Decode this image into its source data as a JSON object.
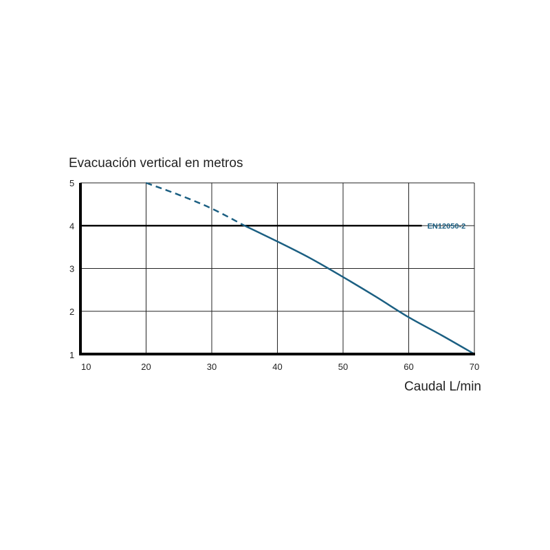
{
  "chart_data": {
    "type": "line",
    "title": "",
    "ylabel": "Evacuación vertical en metros",
    "xlabel": "Caudal L/min",
    "xlim": [
      10,
      70
    ],
    "ylim": [
      1,
      5
    ],
    "x_ticks": [
      "10",
      "20",
      "30",
      "40",
      "50",
      "60",
      "70"
    ],
    "y_ticks": [
      "1",
      "2",
      "3",
      "4",
      "5"
    ],
    "grid": true,
    "series": [
      {
        "name": "",
        "color": "#1b5f82",
        "dashed_segment": {
          "x": [
            20,
            25,
            30,
            35
          ],
          "y": [
            5.0,
            4.72,
            4.4,
            4.0
          ]
        },
        "solid_segment": {
          "x": [
            35,
            40,
            45,
            50,
            55,
            60,
            65,
            70
          ],
          "y": [
            4.0,
            3.63,
            3.24,
            2.8,
            2.34,
            1.86,
            1.44,
            1.0
          ]
        }
      }
    ],
    "reference_line": {
      "y": 4,
      "x_start": 10,
      "x_end": 62,
      "label": "EN12050-2",
      "color": "#000000",
      "label_color": "#1b5f82"
    }
  }
}
